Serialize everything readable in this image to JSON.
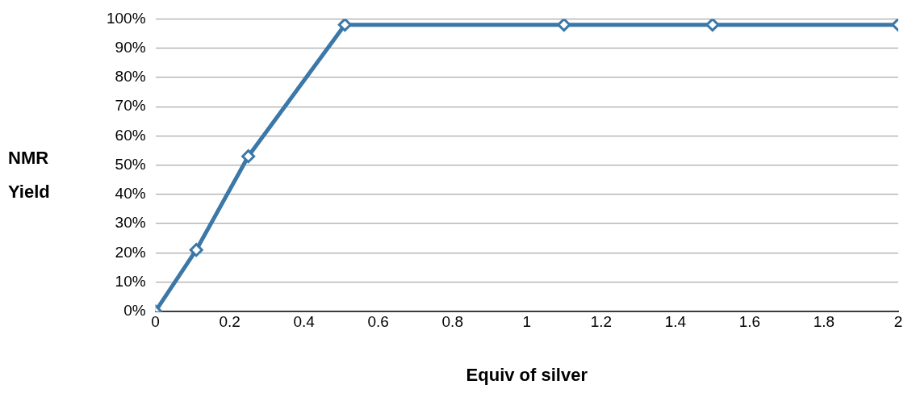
{
  "chart_data": {
    "type": "line",
    "xlabel": "Equiv of silver",
    "ylabel": "NMR Yield",
    "x": [
      0,
      0.11,
      0.25,
      0.51,
      1.1,
      1.5,
      2
    ],
    "series": [
      {
        "color": "#3b78a8",
        "values": [
          0,
          21,
          53,
          98,
          98,
          98,
          98
        ]
      }
    ],
    "xlim": [
      0,
      2
    ],
    "xticks": [
      0,
      0.2,
      0.4,
      0.6,
      0.8,
      1,
      1.2,
      1.4,
      1.6,
      1.8,
      2
    ],
    "ylim": [
      0,
      100
    ],
    "yticks": [
      {
        "value": 0,
        "label": "0%"
      },
      {
        "value": 10,
        "label": "10%"
      },
      {
        "value": 20,
        "label": "20%"
      },
      {
        "value": 30,
        "label": "30%"
      },
      {
        "value": 40,
        "label": "40%"
      },
      {
        "value": 50,
        "label": "50%"
      },
      {
        "value": 60,
        "label": "60%"
      },
      {
        "value": 70,
        "label": "70%"
      },
      {
        "value": 80,
        "label": "80%"
      },
      {
        "value": 90,
        "label": "90%"
      },
      {
        "value": 100,
        "label": "100%"
      }
    ],
    "grid": "y",
    "marker": "diamond",
    "line_style": "solid",
    "legend": false
  }
}
